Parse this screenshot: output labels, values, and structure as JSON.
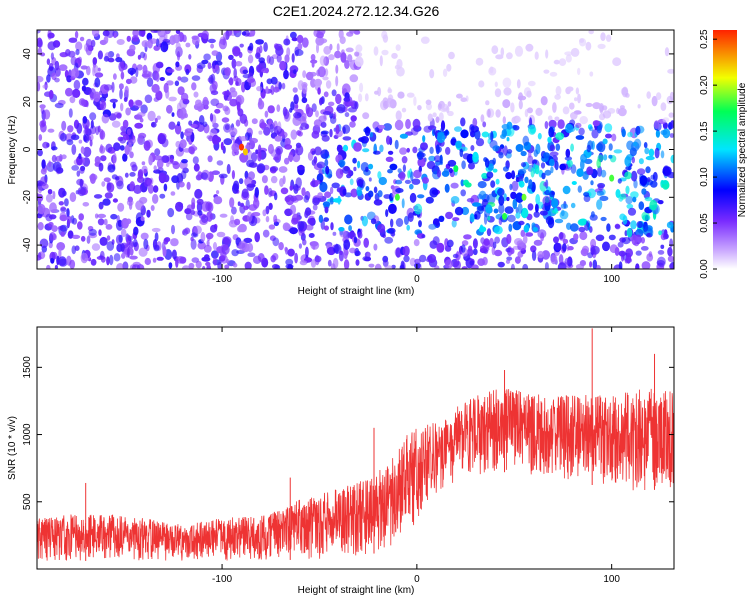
{
  "figure": {
    "title": "C2E1.2024.272.12.34.G26"
  },
  "chart_data": [
    {
      "type": "heatmap",
      "title": "C2E1.2024.272.12.34.G26",
      "xlabel": "Height of straight line (km)",
      "ylabel": "Frequency (Hz)",
      "xlim": [
        -195,
        132
      ],
      "ylim": [
        -50,
        50
      ],
      "xticks": [
        -100,
        0,
        100
      ],
      "yticks": [
        -40,
        -20,
        0,
        20,
        40
      ],
      "colorbar": {
        "label": "Normalized spectral amplitude",
        "range": [
          0.0,
          0.26
        ],
        "ticks": [
          "0.00",
          "0.05",
          "0.10",
          "0.15",
          "0.20",
          "0.25"
        ],
        "colors": [
          "#ffffff",
          "#c9a6ff",
          "#7a2cff",
          "#0000ff",
          "#00e5ff",
          "#00ff55",
          "#f2ff00",
          "#ff2200"
        ]
      },
      "grid": false
    },
    {
      "type": "line",
      "xlabel": "Height of straight line (km)",
      "ylabel": "SNR (10 * v/v)",
      "xlim": [
        -195,
        132
      ],
      "ylim": [
        0,
        1800
      ],
      "xticks": [
        -100,
        0,
        100
      ],
      "yticks": [
        500,
        1000,
        1500
      ],
      "color": "#ee3333",
      "grid": false,
      "envelope": {
        "x": [
          -195,
          -170,
          -150,
          -120,
          -100,
          -80,
          -60,
          -40,
          -25,
          -15,
          -5,
          5,
          15,
          30,
          45,
          60,
          80,
          100,
          115,
          132
        ],
        "low": [
          60,
          60,
          60,
          60,
          60,
          60,
          70,
          80,
          100,
          150,
          250,
          450,
          620,
          700,
          720,
          700,
          650,
          600,
          580,
          600
        ],
        "high": [
          380,
          420,
          400,
          330,
          380,
          400,
          520,
          600,
          680,
          800,
          1000,
          1100,
          1150,
          1300,
          1350,
          1300,
          1300,
          1300,
          1350,
          1320
        ]
      },
      "peaks": [
        {
          "x": -170,
          "y": 640
        },
        {
          "x": -65,
          "y": 680
        },
        {
          "x": -22,
          "y": 1050
        },
        {
          "x": 45,
          "y": 1480
        },
        {
          "x": 90,
          "y": 1790
        },
        {
          "x": 122,
          "y": 1600
        }
      ]
    }
  ]
}
